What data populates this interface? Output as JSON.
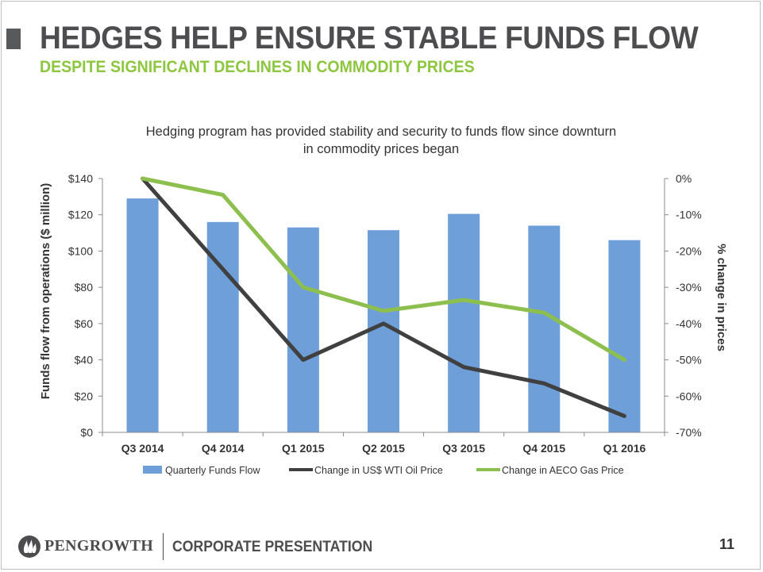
{
  "header": {
    "title": "HEDGES HELP ENSURE STABLE FUNDS FLOW",
    "subtitle": "DESPITE SIGNIFICANT DECLINES IN COMMODITY PRICES"
  },
  "chart_data": {
    "type": "bar",
    "title_line1": "Hedging program has provided stability and security to funds flow since downturn",
    "title_line2": "in commodity prices began",
    "categories": [
      "Q3 2014",
      "Q4 2014",
      "Q1 2015",
      "Q2 2015",
      "Q3 2015",
      "Q4 2015",
      "Q1 2016"
    ],
    "ylabel": "Funds flow from operations ($ million)",
    "y2label": "% change in prices",
    "ylim": [
      0,
      140
    ],
    "y2lim": [
      -70,
      0
    ],
    "y_ticks": [
      "$0",
      "$20",
      "$40",
      "$60",
      "$80",
      "$100",
      "$120",
      "$140"
    ],
    "y2_ticks": [
      "-70%",
      "-60%",
      "-50%",
      "-40%",
      "-30%",
      "-20%",
      "-10%",
      "0%"
    ],
    "series": [
      {
        "name": "Quarterly Funds Flow",
        "kind": "bar",
        "axis": "left",
        "color": "#6f9fd8",
        "values": [
          129,
          116,
          113,
          111.5,
          120.5,
          114,
          106
        ]
      },
      {
        "name": "Change in US$ WTI Oil Price",
        "kind": "line",
        "axis": "right",
        "color": "#404040",
        "values": [
          0,
          -25,
          -50,
          -40,
          -52,
          -56.5,
          -65.5
        ]
      },
      {
        "name": "Change in AECO Gas Price",
        "kind": "line",
        "axis": "right",
        "color": "#8dbf4f",
        "values": [
          0,
          -4.5,
          -30,
          -36.5,
          -33.5,
          -37,
          -50
        ]
      }
    ],
    "legend_position": "bottom",
    "grid": false
  },
  "footer": {
    "logo_text": "PENGROWTH",
    "label": "CORPORATE PRESENTATION",
    "page_number": "11"
  },
  "icons": {
    "logo": "pengrowth-flame-logo-icon"
  }
}
